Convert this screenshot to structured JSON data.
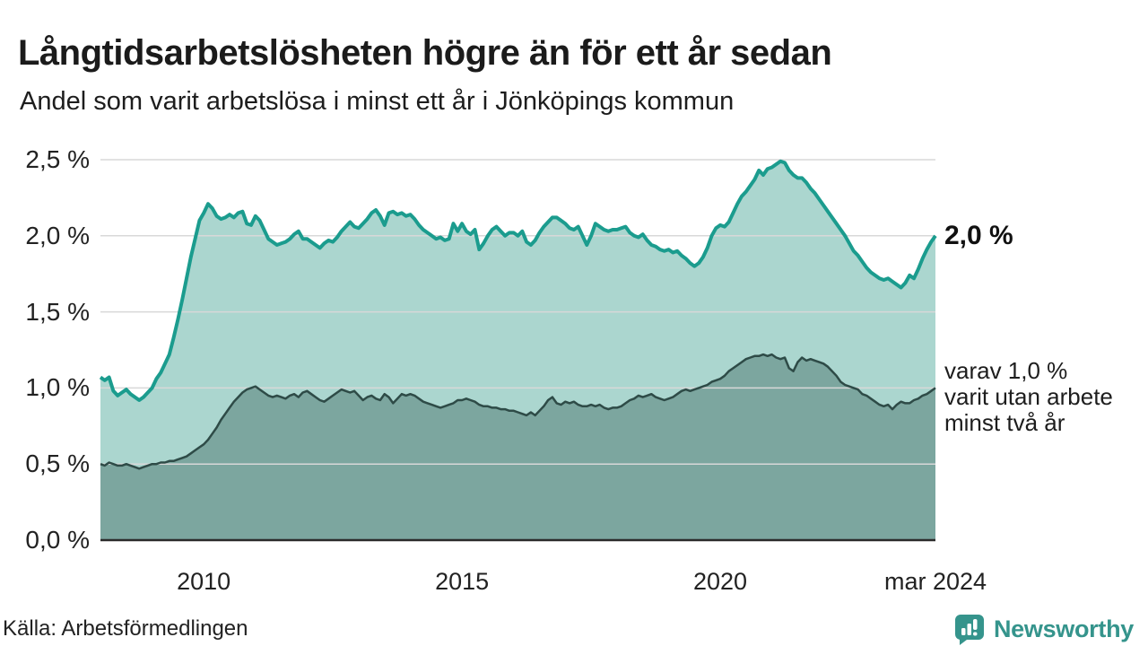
{
  "header": {
    "title": "Långtidsarbetslösheten högre än för ett år sedan",
    "subtitle": "Andel som varit arbetslösa i minst ett år i Jönköpings kommun"
  },
  "chart_data": {
    "type": "area",
    "unit": "%",
    "frequency": "monthly",
    "x_start": "2008-01",
    "x_end": "2024-03",
    "ylim": [
      0,
      2.5
    ],
    "grid": true,
    "yticks": [
      {
        "label": "0,0 %",
        "value": 0
      },
      {
        "label": "0,5 %",
        "value": 0.5
      },
      {
        "label": "1,0 %",
        "value": 1.0
      },
      {
        "label": "1,5 %",
        "value": 1.5
      },
      {
        "label": "2,0 %",
        "value": 2.0
      },
      {
        "label": "2,5 %",
        "value": 2.5
      }
    ],
    "xticks": [
      {
        "label": "2010",
        "month_index": 24
      },
      {
        "label": "2015",
        "month_index": 84
      },
      {
        "label": "2020",
        "month_index": 144
      },
      {
        "label": "mar 2024",
        "month_index": 194
      }
    ],
    "series": [
      {
        "name": "Andel arbetslösa minst ett år",
        "line_color": "#1b9c8e",
        "fill_color": "#abd6cf",
        "line_width": 4,
        "values": [
          1.07,
          1.05,
          1.07,
          0.98,
          0.95,
          0.97,
          0.99,
          0.96,
          0.94,
          0.92,
          0.94,
          0.97,
          1.0,
          1.06,
          1.1,
          1.16,
          1.22,
          1.33,
          1.45,
          1.58,
          1.72,
          1.86,
          1.98,
          2.1,
          2.15,
          2.21,
          2.18,
          2.13,
          2.11,
          2.12,
          2.14,
          2.12,
          2.15,
          2.16,
          2.08,
          2.07,
          2.13,
          2.1,
          2.04,
          1.98,
          1.96,
          1.94,
          1.95,
          1.96,
          1.98,
          2.01,
          2.03,
          1.98,
          1.98,
          1.96,
          1.94,
          1.92,
          1.95,
          1.97,
          1.96,
          1.99,
          2.03,
          2.06,
          2.09,
          2.06,
          2.05,
          2.08,
          2.11,
          2.15,
          2.17,
          2.13,
          2.07,
          2.15,
          2.16,
          2.14,
          2.15,
          2.13,
          2.14,
          2.11,
          2.07,
          2.04,
          2.02,
          2.0,
          1.98,
          1.99,
          1.97,
          1.98,
          2.08,
          2.03,
          2.08,
          2.03,
          2.01,
          2.04,
          1.91,
          1.95,
          2.0,
          2.04,
          2.06,
          2.03,
          2.0,
          2.02,
          2.02,
          2.0,
          2.03,
          1.96,
          1.94,
          1.97,
          2.02,
          2.06,
          2.09,
          2.12,
          2.12,
          2.1,
          2.08,
          2.05,
          2.04,
          2.06,
          2.0,
          1.94,
          2.0,
          2.08,
          2.06,
          2.04,
          2.03,
          2.04,
          2.04,
          2.05,
          2.06,
          2.02,
          2.0,
          1.99,
          2.01,
          1.97,
          1.94,
          1.93,
          1.91,
          1.9,
          1.91,
          1.89,
          1.9,
          1.87,
          1.85,
          1.82,
          1.8,
          1.82,
          1.86,
          1.92,
          2.0,
          2.05,
          2.07,
          2.06,
          2.09,
          2.15,
          2.21,
          2.26,
          2.29,
          2.33,
          2.37,
          2.43,
          2.4,
          2.44,
          2.45,
          2.47,
          2.49,
          2.48,
          2.43,
          2.4,
          2.38,
          2.38,
          2.35,
          2.31,
          2.28,
          2.24,
          2.2,
          2.16,
          2.12,
          2.08,
          2.04,
          2.0,
          1.95,
          1.9,
          1.87,
          1.83,
          1.79,
          1.76,
          1.74,
          1.72,
          1.71,
          1.72,
          1.7,
          1.68,
          1.66,
          1.69,
          1.74,
          1.72,
          1.78,
          1.85,
          1.91,
          1.96,
          2.0
        ]
      },
      {
        "name": "varav utan arbete minst två år",
        "line_color": "#2e4b47",
        "fill_color": "#7ca69f",
        "line_width": 2.5,
        "values": [
          0.5,
          0.49,
          0.51,
          0.5,
          0.49,
          0.49,
          0.5,
          0.49,
          0.48,
          0.47,
          0.48,
          0.49,
          0.5,
          0.5,
          0.51,
          0.51,
          0.52,
          0.52,
          0.53,
          0.54,
          0.55,
          0.57,
          0.59,
          0.61,
          0.63,
          0.66,
          0.7,
          0.74,
          0.79,
          0.83,
          0.87,
          0.91,
          0.94,
          0.97,
          0.99,
          1.0,
          1.01,
          0.99,
          0.97,
          0.95,
          0.94,
          0.95,
          0.94,
          0.93,
          0.95,
          0.96,
          0.94,
          0.97,
          0.98,
          0.96,
          0.94,
          0.92,
          0.91,
          0.93,
          0.95,
          0.97,
          0.99,
          0.98,
          0.97,
          0.98,
          0.95,
          0.92,
          0.94,
          0.95,
          0.93,
          0.92,
          0.96,
          0.94,
          0.9,
          0.93,
          0.96,
          0.95,
          0.96,
          0.95,
          0.93,
          0.91,
          0.9,
          0.89,
          0.88,
          0.87,
          0.88,
          0.89,
          0.9,
          0.92,
          0.92,
          0.93,
          0.92,
          0.91,
          0.89,
          0.88,
          0.88,
          0.87,
          0.87,
          0.86,
          0.86,
          0.85,
          0.85,
          0.84,
          0.83,
          0.82,
          0.84,
          0.82,
          0.85,
          0.88,
          0.92,
          0.94,
          0.9,
          0.89,
          0.91,
          0.9,
          0.91,
          0.89,
          0.88,
          0.88,
          0.89,
          0.88,
          0.89,
          0.87,
          0.86,
          0.87,
          0.87,
          0.88,
          0.9,
          0.92,
          0.93,
          0.95,
          0.94,
          0.95,
          0.96,
          0.94,
          0.93,
          0.92,
          0.93,
          0.94,
          0.96,
          0.98,
          0.99,
          0.98,
          0.99,
          1.0,
          1.01,
          1.02,
          1.04,
          1.05,
          1.06,
          1.08,
          1.11,
          1.13,
          1.15,
          1.17,
          1.19,
          1.2,
          1.21,
          1.21,
          1.22,
          1.21,
          1.22,
          1.2,
          1.19,
          1.2,
          1.13,
          1.11,
          1.17,
          1.2,
          1.18,
          1.19,
          1.18,
          1.17,
          1.16,
          1.14,
          1.11,
          1.08,
          1.04,
          1.02,
          1.01,
          1.0,
          0.99,
          0.96,
          0.95,
          0.93,
          0.91,
          0.89,
          0.88,
          0.89,
          0.86,
          0.89,
          0.91,
          0.9,
          0.9,
          0.92,
          0.93,
          0.95,
          0.96,
          0.98,
          1.0
        ]
      }
    ],
    "annotations": {
      "last_value_label": "2,0 %",
      "series2_label": "varav 1,0 %\nvarit utan arbete\nminst två år"
    },
    "colors": {
      "grid": "#d8d8d8",
      "axis": "#2b2b2b"
    }
  },
  "footer": {
    "source": "Källa: Arbetsförmedlingen",
    "logo_text": "Newsworthy",
    "logo_color": "#35948c"
  }
}
